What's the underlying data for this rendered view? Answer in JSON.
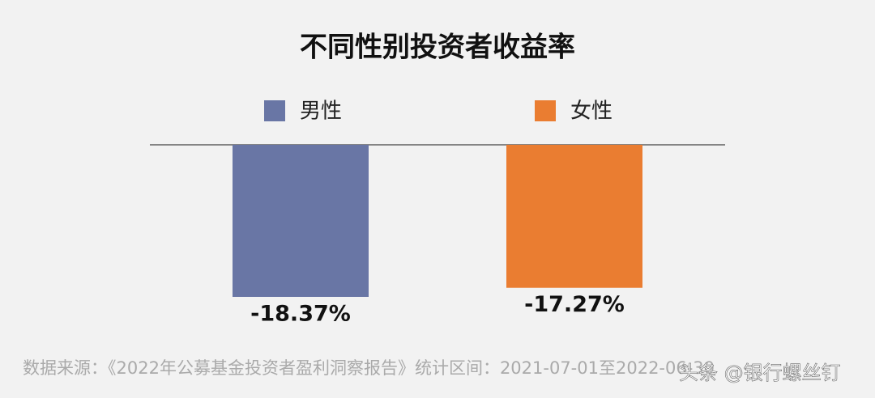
{
  "chart_data": {
    "type": "bar",
    "title": "不同性别投资者收益率",
    "categories": [
      "男性",
      "女性"
    ],
    "values": [
      -18.37,
      -17.27
    ],
    "value_labels": [
      "-18.37%",
      "-17.27%"
    ],
    "colors": [
      "#6976a5",
      "#ea7d31"
    ],
    "source": "数据来源：《2022年公募基金投资者盈利洞察报告》统计区间：2021-07-01至2022-06-30"
  },
  "watermark": "头条 @银行螺丝钉"
}
